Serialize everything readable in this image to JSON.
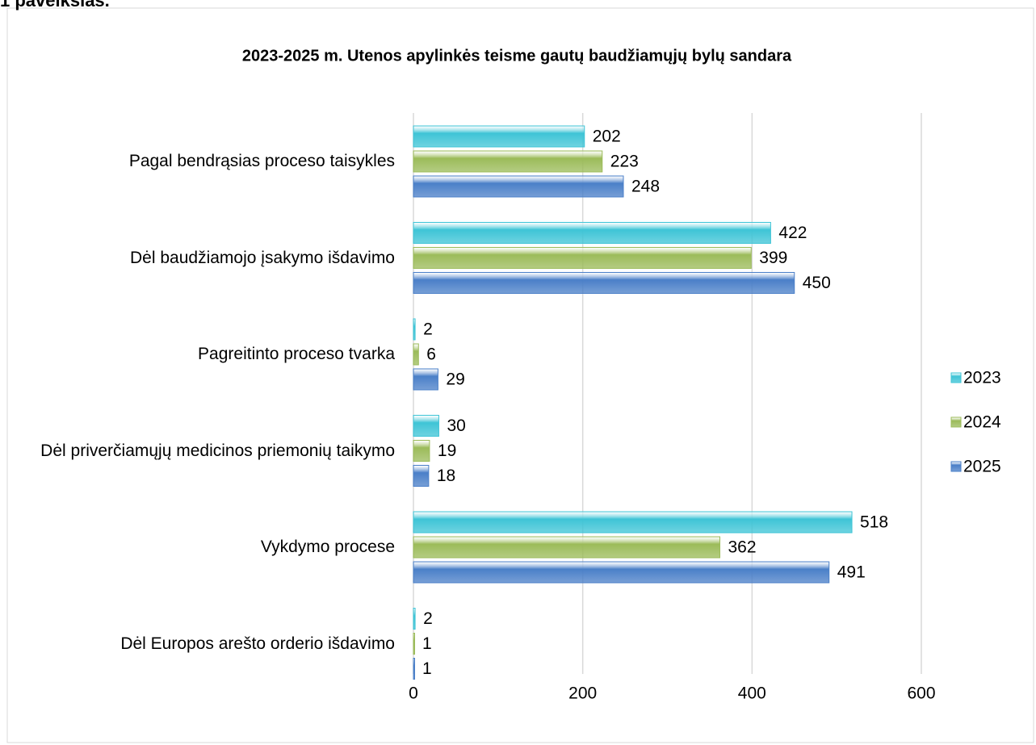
{
  "caption": "1 paveikslas.",
  "chart_data": {
    "type": "barh",
    "title": "2023-2025 m. Utenos apylinkės teisme gautų baudžiamųjų bylų sandara",
    "categories": [
      "Pagal bendrąsias proceso taisykles",
      "Dėl baudžiamojo įsakymo išdavimo",
      "Pagreitinto proceso tvarka",
      "Dėl priverčiamųjų medicinos priemonių taikymo",
      "Vykdymo procese",
      "Dėl Europos arešto orderio išdavimo"
    ],
    "series": [
      {
        "name": "2023",
        "color": "#3ec4d6",
        "values": [
          202,
          422,
          2,
          30,
          518,
          2
        ]
      },
      {
        "name": "2024",
        "color": "#9bbb59",
        "values": [
          223,
          399,
          6,
          19,
          362,
          1
        ]
      },
      {
        "name": "2025",
        "color": "#4a7fc8",
        "values": [
          248,
          450,
          29,
          18,
          491,
          1
        ]
      }
    ],
    "xlim": [
      0,
      600
    ],
    "xticks": [
      0,
      200,
      400,
      600
    ],
    "grid": true,
    "legend": "right"
  }
}
